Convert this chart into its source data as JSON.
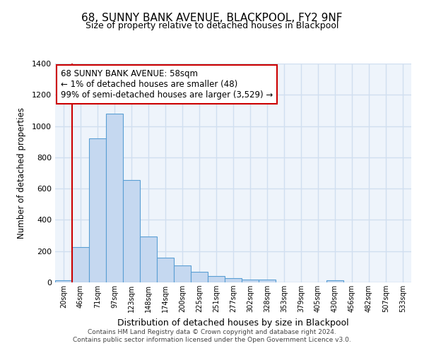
{
  "title": "68, SUNNY BANK AVENUE, BLACKPOOL, FY2 9NF",
  "subtitle": "Size of property relative to detached houses in Blackpool",
  "xlabel": "Distribution of detached houses by size in Blackpool",
  "ylabel": "Number of detached properties",
  "bar_labels": [
    "20sqm",
    "46sqm",
    "71sqm",
    "97sqm",
    "123sqm",
    "148sqm",
    "174sqm",
    "200sqm",
    "225sqm",
    "251sqm",
    "277sqm",
    "302sqm",
    "328sqm",
    "353sqm",
    "379sqm",
    "405sqm",
    "430sqm",
    "456sqm",
    "482sqm",
    "507sqm",
    "533sqm"
  ],
  "bar_values": [
    15,
    228,
    920,
    1080,
    655,
    295,
    160,
    108,
    70,
    42,
    25,
    20,
    18,
    0,
    0,
    0,
    15,
    0,
    0,
    0,
    0
  ],
  "bar_color": "#c5d8f0",
  "bar_edge_color": "#5a9fd4",
  "vline_color": "#cc0000",
  "ylim": [
    0,
    1400
  ],
  "yticks": [
    0,
    200,
    400,
    600,
    800,
    1000,
    1200,
    1400
  ],
  "annotation_box_text": "68 SUNNY BANK AVENUE: 58sqm\n← 1% of detached houses are smaller (48)\n99% of semi-detached houses are larger (3,529) →",
  "footer_line1": "Contains HM Land Registry data © Crown copyright and database right 2024.",
  "footer_line2": "Contains public sector information licensed under the Open Government Licence v3.0.",
  "background_color": "#eef4fb",
  "grid_color": "#d0dff0",
  "fig_bg_color": "#ffffff"
}
